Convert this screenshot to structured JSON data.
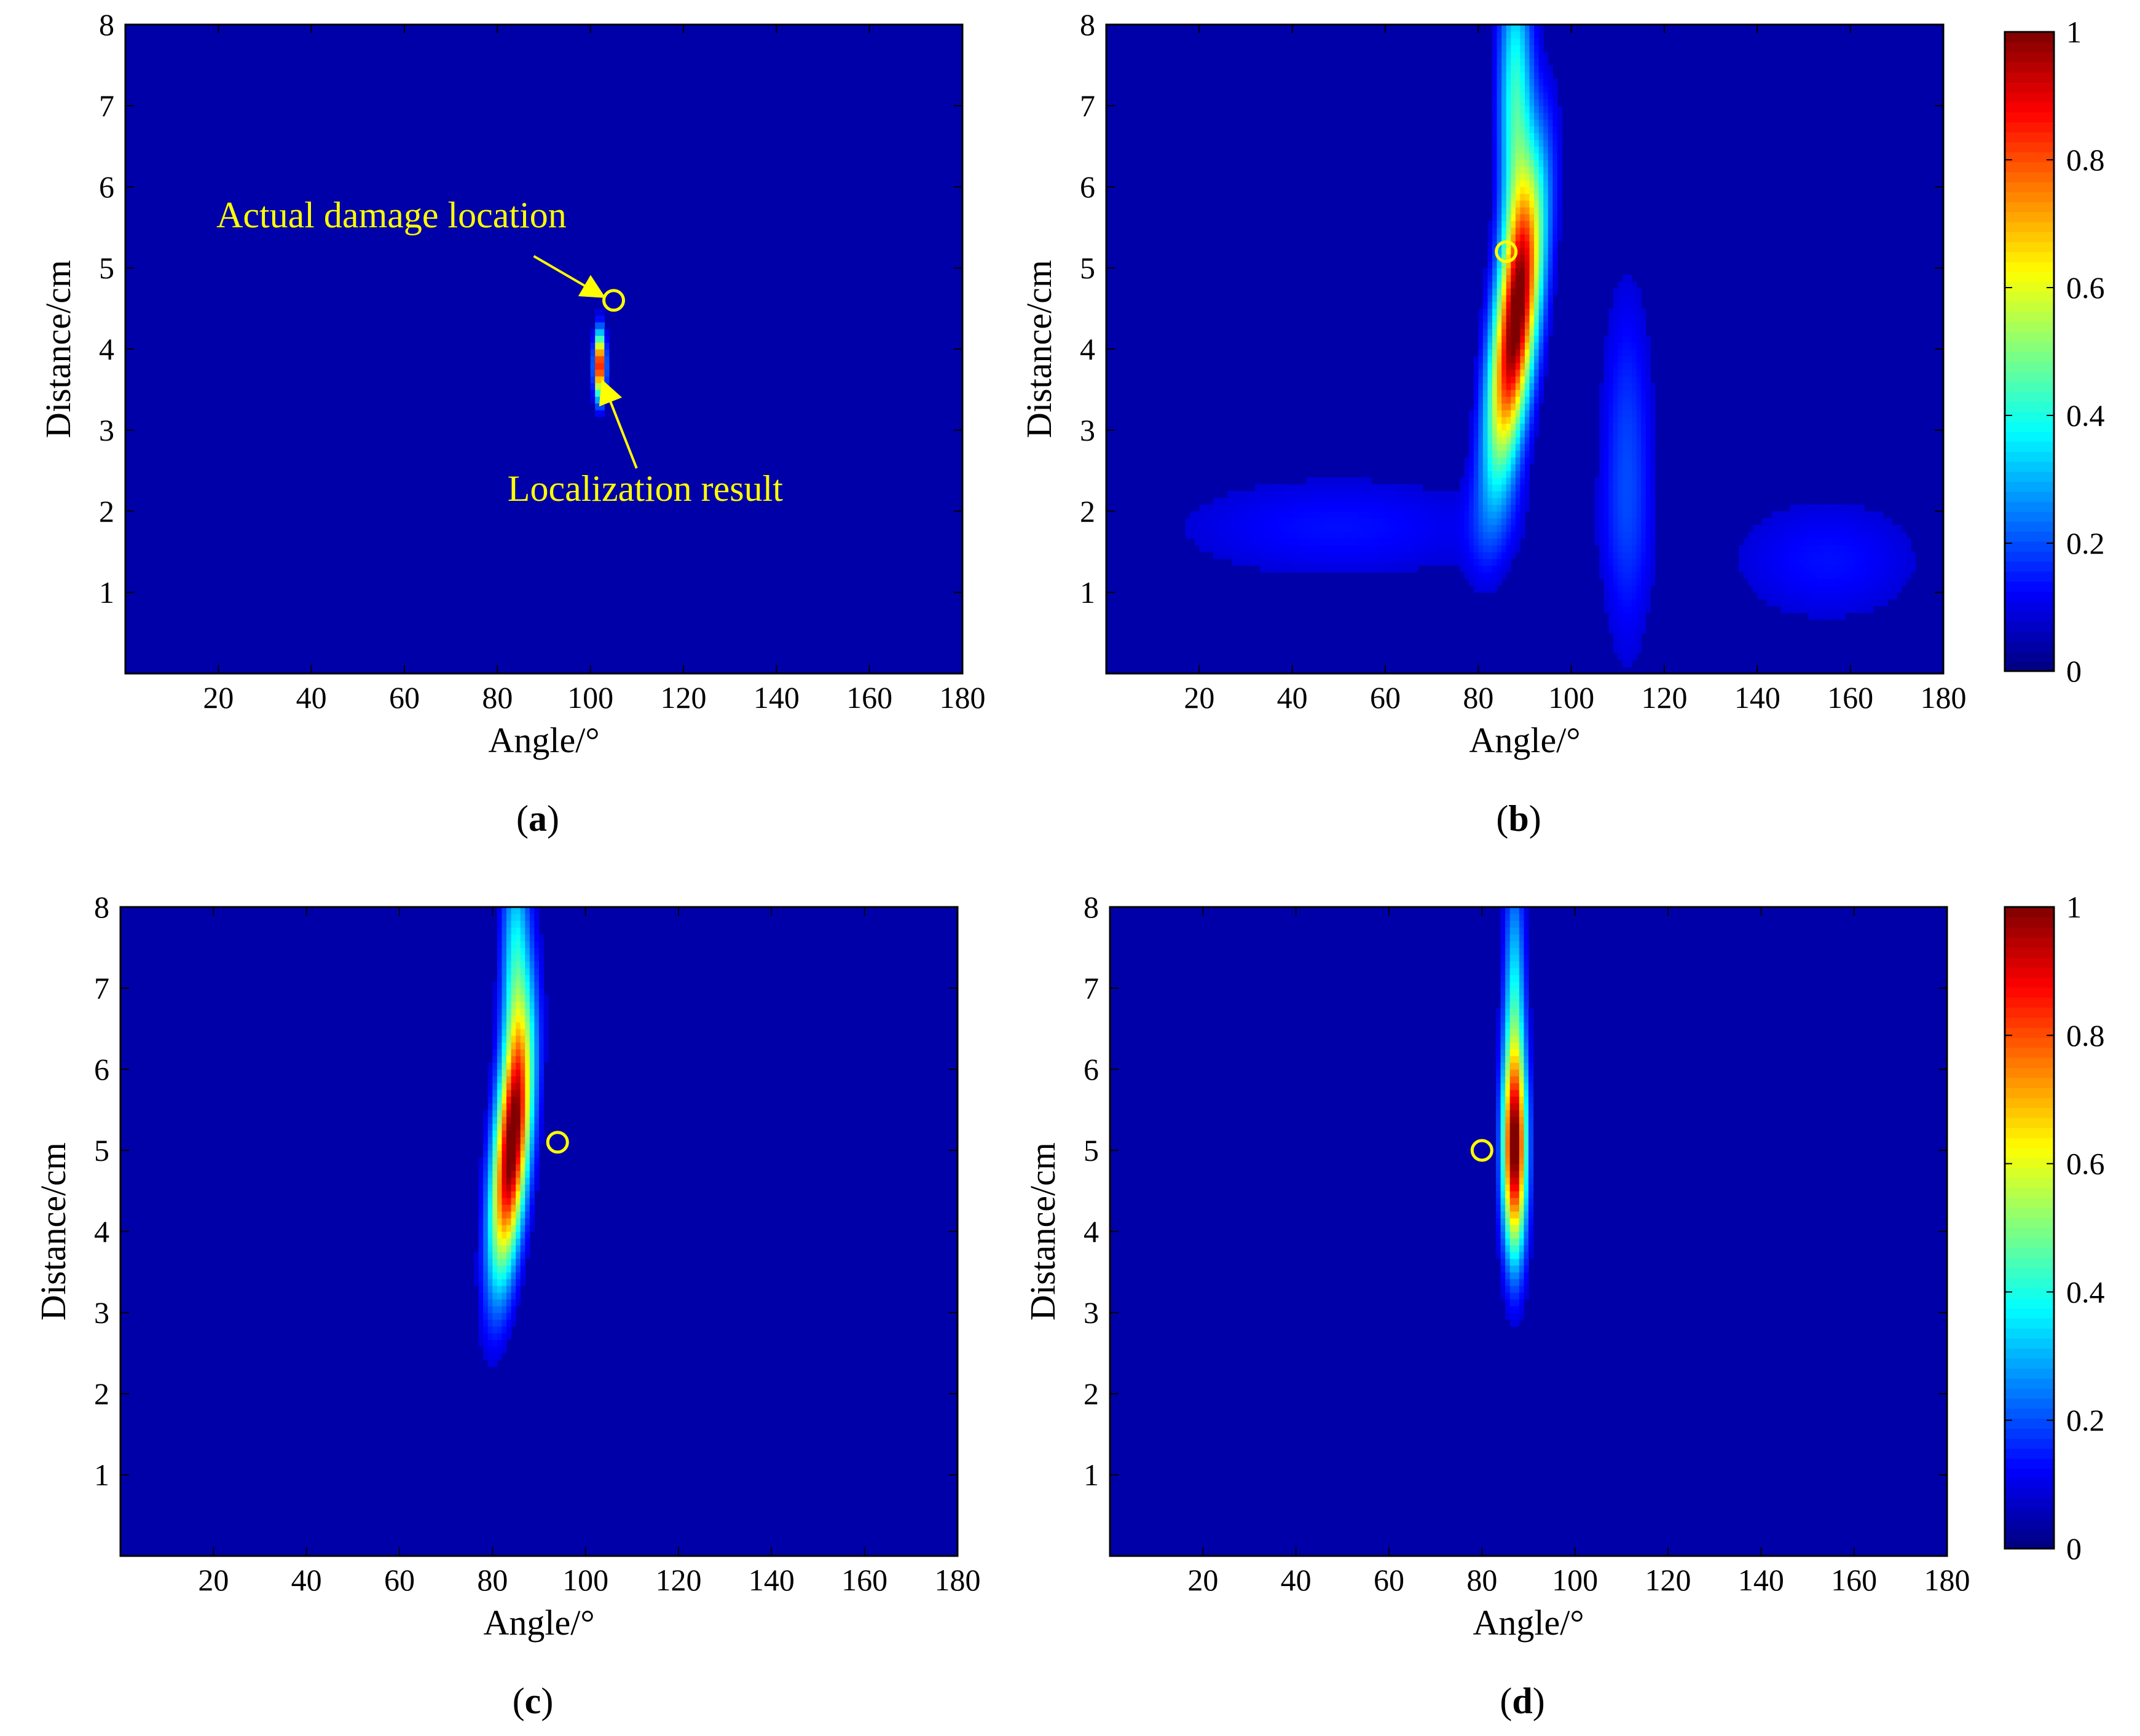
{
  "chart_data": [
    {
      "panel_label": "a",
      "type": "heatmap",
      "xlabel": "Angle/°",
      "ylabel": "Distance/cm",
      "xlim": [
        0,
        180
      ],
      "ylim": [
        0,
        8
      ],
      "x_ticks": [
        20,
        40,
        60,
        80,
        100,
        120,
        140,
        160,
        180
      ],
      "y_ticks": [
        1,
        2,
        3,
        4,
        5,
        6,
        7,
        8
      ],
      "colormap": "jet",
      "clim": [
        0,
        1
      ],
      "peaks": [
        {
          "angle": 102,
          "distance": 3.8,
          "amplitude": 1.0,
          "sigma_angle": 0.8,
          "sigma_distance": 0.28
        }
      ],
      "actual_damage": {
        "angle": 105,
        "distance": 4.6
      },
      "annotations": [
        {
          "text": "Actual damage location",
          "target": "actual_damage"
        },
        {
          "text": "Localization result",
          "target": "peak"
        }
      ]
    },
    {
      "panel_label": "b",
      "type": "heatmap",
      "xlabel": "Angle/°",
      "ylabel": "Distance/cm",
      "xlim": [
        0,
        180
      ],
      "ylim": [
        0,
        8
      ],
      "x_ticks": [
        20,
        40,
        60,
        80,
        100,
        120,
        140,
        160,
        180
      ],
      "y_ticks": [
        1,
        2,
        3,
        4,
        5,
        6,
        7,
        8
      ],
      "colormap": "jet",
      "clim": [
        0,
        1
      ],
      "peaks": [
        {
          "angle": 88,
          "distance": 4.3,
          "amplitude": 1.0,
          "sigma_angle": 3.2,
          "sigma_distance": 1.3,
          "tilt": 2.0
        },
        {
          "angle": 88,
          "distance": 7.0,
          "amplitude": 0.4,
          "sigma_angle": 2.6,
          "sigma_distance": 1.4
        },
        {
          "angle": 112,
          "distance": 2.5,
          "amplitude": 0.16,
          "sigma_angle": 4.0,
          "sigma_distance": 1.6
        },
        {
          "angle": 50,
          "distance": 1.8,
          "amplitude": 0.1,
          "sigma_angle": 28,
          "sigma_distance": 0.5
        },
        {
          "angle": 155,
          "distance": 1.4,
          "amplitude": 0.1,
          "sigma_angle": 16,
          "sigma_distance": 0.6
        }
      ],
      "actual_damage": {
        "angle": 86,
        "distance": 5.2
      }
    },
    {
      "panel_label": "c",
      "type": "heatmap",
      "xlabel": "Angle/°",
      "ylabel": "Distance/cm",
      "xlim": [
        0,
        180
      ],
      "ylim": [
        0,
        8
      ],
      "x_ticks": [
        20,
        40,
        60,
        80,
        100,
        120,
        140,
        160,
        180
      ],
      "y_ticks": [
        1,
        2,
        3,
        4,
        5,
        6,
        7,
        8
      ],
      "colormap": "jet",
      "clim": [
        0,
        1
      ],
      "peaks": [
        {
          "angle": 84,
          "distance": 5.0,
          "amplitude": 1.0,
          "sigma_angle": 2.6,
          "sigma_distance": 1.1,
          "tilt": 1.5
        },
        {
          "angle": 85,
          "distance": 7.2,
          "amplitude": 0.35,
          "sigma_angle": 2.2,
          "sigma_distance": 1.2
        }
      ],
      "actual_damage": {
        "angle": 94,
        "distance": 5.1
      }
    },
    {
      "panel_label": "d",
      "type": "heatmap",
      "xlabel": "Angle/°",
      "ylabel": "Distance/cm",
      "xlim": [
        0,
        180
      ],
      "ylim": [
        0,
        8
      ],
      "x_ticks": [
        20,
        40,
        60,
        80,
        100,
        120,
        140,
        160,
        180
      ],
      "y_ticks": [
        1,
        2,
        3,
        4,
        5,
        6,
        7,
        8
      ],
      "colormap": "jet",
      "clim": [
        0,
        1
      ],
      "peaks": [
        {
          "angle": 87,
          "distance": 5.0,
          "amplitude": 1.0,
          "sigma_angle": 1.8,
          "sigma_distance": 0.9
        },
        {
          "angle": 87,
          "distance": 7.0,
          "amplitude": 0.3,
          "sigma_angle": 1.6,
          "sigma_distance": 1.1
        }
      ],
      "actual_damage": {
        "angle": 80,
        "distance": 5.0
      }
    }
  ],
  "colorbars": [
    {
      "ticks": [
        "0",
        "0.2",
        "0.4",
        "0.6",
        "0.8",
        "1"
      ]
    },
    {
      "ticks": [
        "0",
        "0.2",
        "0.4",
        "0.6",
        "0.8",
        "1"
      ]
    }
  ],
  "colors": {
    "background": "#00008F",
    "marker": "#FFFF00",
    "annotation": "#FFFF00"
  }
}
